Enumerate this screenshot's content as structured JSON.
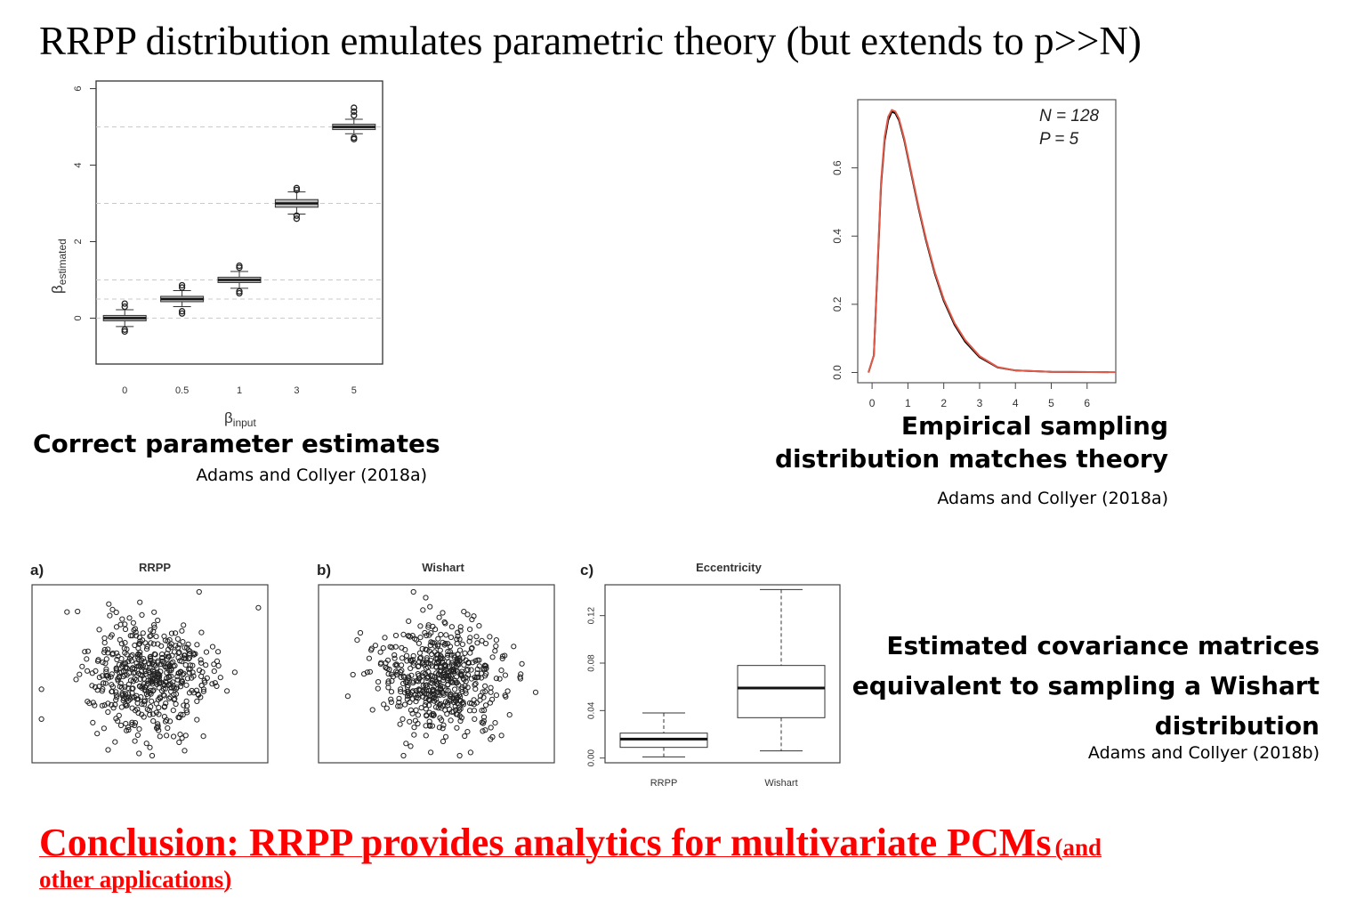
{
  "title": "RRPP distribution emulates parametric theory (but extends to p>>N)",
  "panel1": {
    "caption": "Correct parameter estimates",
    "citation": "Adams and Collyer (2018a)"
  },
  "panel2": {
    "caption_line1": "Empirical sampling",
    "caption_line2": "distribution matches theory",
    "citation": "Adams and Collyer (2018a)"
  },
  "panel3": {
    "caption_line1": "Estimated covariance matrices",
    "caption_line2": "equivalent to sampling a Wishart",
    "caption_line3": "distribution",
    "citation": "Adams and Collyer (2018b)"
  },
  "conclusion": {
    "main": "Conclusion: RRPP provides analytics for multivariate PCMs",
    "aside_part1": "(and",
    "aside_part2": "other applications)"
  },
  "chart_data": [
    {
      "type": "boxplot",
      "xlabel_base": "β",
      "xlabel_sub": "input",
      "ylabel_base": "β",
      "ylabel_sub": "estimated",
      "categories": [
        "0",
        "0.5",
        "1",
        "3",
        "5"
      ],
      "medians": [
        0,
        0.5,
        1,
        3,
        5
      ],
      "q1": [
        -0.07,
        0.43,
        0.93,
        2.9,
        4.93
      ],
      "q3": [
        0.07,
        0.57,
        1.07,
        3.1,
        5.07
      ],
      "whisker_low": [
        -0.22,
        0.3,
        0.78,
        2.72,
        4.82
      ],
      "whisker_high": [
        0.22,
        0.72,
        1.22,
        3.3,
        5.2
      ],
      "outliers": [
        [
          -0.3,
          -0.35,
          0.3,
          0.38
        ],
        [
          0.12,
          0.18,
          0.8,
          0.86
        ],
        [
          0.65,
          0.7,
          1.32,
          1.37
        ],
        [
          2.6,
          2.68,
          3.35,
          3.4
        ],
        [
          4.68,
          4.72,
          5.3,
          5.4,
          5.5
        ]
      ],
      "reference_lines": [
        0,
        0.5,
        1,
        3,
        5
      ],
      "ylim": [
        -1.2,
        6.2
      ],
      "yticks": [
        "0",
        "2",
        "4",
        "6"
      ]
    },
    {
      "type": "line",
      "annotation_n": "N = 128",
      "annotation_p": "P = 5",
      "xlim": [
        -0.4,
        6.8
      ],
      "ylim": [
        -0.03,
        0.8
      ],
      "xticks": [
        "0",
        "1",
        "2",
        "3",
        "4",
        "5",
        "6"
      ],
      "yticks": [
        "0.0",
        "0.2",
        "0.4",
        "0.6"
      ],
      "series": [
        {
          "color": "#000000",
          "x": [
            -0.1,
            0.05,
            0.15,
            0.25,
            0.35,
            0.45,
            0.55,
            0.65,
            0.75,
            0.9,
            1.1,
            1.3,
            1.5,
            1.75,
            2.0,
            2.3,
            2.6,
            3.0,
            3.5,
            4.0,
            5.0,
            6.6
          ],
          "y": [
            0.0,
            0.05,
            0.3,
            0.55,
            0.68,
            0.74,
            0.765,
            0.76,
            0.74,
            0.68,
            0.58,
            0.48,
            0.39,
            0.29,
            0.21,
            0.14,
            0.09,
            0.045,
            0.015,
            0.006,
            0.002,
            0.001
          ]
        },
        {
          "color": "#e05a4a",
          "x": [
            -0.1,
            0.05,
            0.15,
            0.25,
            0.35,
            0.45,
            0.55,
            0.65,
            0.75,
            0.9,
            1.1,
            1.3,
            1.5,
            1.75,
            2.0,
            2.3,
            2.6,
            3.0,
            3.5,
            4.0,
            5.0,
            6.8
          ],
          "y": [
            0.0,
            0.05,
            0.31,
            0.56,
            0.69,
            0.75,
            0.77,
            0.765,
            0.745,
            0.685,
            0.585,
            0.485,
            0.395,
            0.295,
            0.215,
            0.145,
            0.095,
            0.048,
            0.016,
            0.006,
            0.002,
            0.001
          ]
        }
      ]
    },
    {
      "type": "scatter",
      "panel_label": "a)",
      "title": "RRPP",
      "n_points": 520,
      "seed": 11,
      "spread": [
        0.14,
        0.16
      ]
    },
    {
      "type": "scatter",
      "panel_label": "b)",
      "title": "Wishart",
      "n_points": 560,
      "seed": 29,
      "spread": [
        0.13,
        0.15
      ]
    },
    {
      "type": "boxplot",
      "panel_label": "c)",
      "title": "Eccentricity",
      "categories": [
        "RRPP",
        "Wishart"
      ],
      "medians": [
        0.016,
        0.059
      ],
      "q1": [
        0.009,
        0.034
      ],
      "q3": [
        0.021,
        0.078
      ],
      "whisker_low": [
        0.001,
        0.006
      ],
      "whisker_high": [
        0.038,
        0.142
      ],
      "ylim": [
        -0.004,
        0.146
      ],
      "yticks": [
        "0.00",
        "0.04",
        "0.08",
        "0.12"
      ]
    }
  ]
}
